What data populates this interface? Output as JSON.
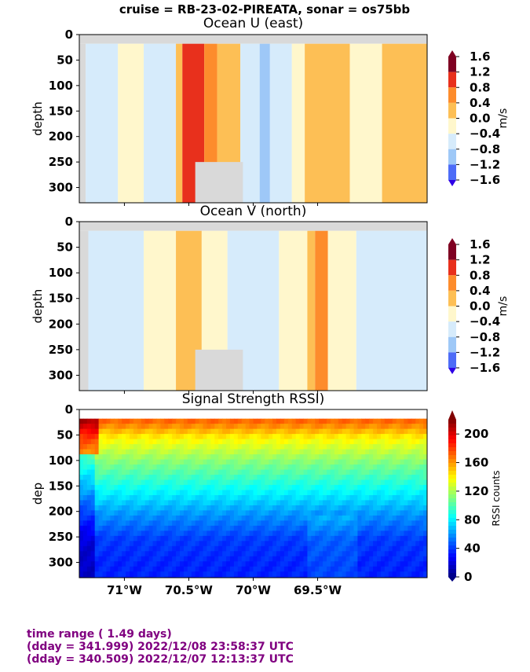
{
  "suptitle": "cruise = RB-23-02-PIREATA,  sonar = os75bb",
  "footer": {
    "line1": "time range ( 1.49 days)",
    "line2": "(dday = 341.999) 2022/12/08 23:58:37 UTC",
    "line3": "(dday = 340.509) 2022/12/07 12:13:37 UTC"
  },
  "colors": {
    "footer_text": "#800080",
    "nodata": "#d9d9d9"
  },
  "chart_data": [
    {
      "type": "heatmap",
      "title": "Ocean U (east)",
      "ylabel": "depth",
      "xlim": [
        -71.35,
        -68.65
      ],
      "ylim": [
        330,
        0
      ],
      "y_ticks": [
        0,
        50,
        100,
        150,
        200,
        250,
        300
      ],
      "x_ticks": [
        -71.0,
        -70.5,
        -70.0,
        -69.5
      ],
      "colorbar": {
        "label": "m/s",
        "ticks": [
          "1.6",
          "1.2",
          "0.8",
          "0.4",
          "0.0",
          "−0.4",
          "−0.8",
          "−1.2",
          "−1.6"
        ],
        "levels": [
          -1.6,
          -1.2,
          -0.8,
          -0.4,
          0.0,
          0.4,
          0.8,
          1.2,
          1.6
        ],
        "colors": [
          "#2e00e6",
          "#4d6cf7",
          "#9ec8f7",
          "#d6ebfb",
          "#fff7cc",
          "#fdbf55",
          "#fd8c2c",
          "#e8301c",
          "#7f0022"
        ]
      },
      "description_bands": [
        {
          "x": [
            -71.35,
            -71.3
          ],
          "value": "nodata"
        },
        {
          "x": [
            -71.3,
            -71.05
          ],
          "value": -0.2
        },
        {
          "x": [
            -71.05,
            -70.85
          ],
          "value": 0.2
        },
        {
          "x": [
            -70.85,
            -70.6
          ],
          "value": -0.2
        },
        {
          "x": [
            -70.6,
            -70.55
          ],
          "value": 0.5
        },
        {
          "x": [
            -70.55,
            -70.38
          ],
          "value": 1.4
        },
        {
          "x": [
            -70.38,
            -70.28
          ],
          "value": 0.9
        },
        {
          "x": [
            -70.28,
            -70.1
          ],
          "value": 0.5
        },
        {
          "x": [
            -70.1,
            -69.95
          ],
          "value": -0.2
        },
        {
          "x": [
            -69.95,
            -69.87
          ],
          "value": -0.6
        },
        {
          "x": [
            -69.87,
            -69.7
          ],
          "value": -0.2
        },
        {
          "x": [
            -69.7,
            -69.6
          ],
          "value": 0.2
        },
        {
          "x": [
            -69.6,
            -69.25
          ],
          "value": 0.5
        },
        {
          "x": [
            -69.25,
            -69.0
          ],
          "value": 0.2
        },
        {
          "x": [
            -69.0,
            -68.65
          ],
          "value": 0.5
        }
      ]
    },
    {
      "type": "heatmap",
      "title": "Ocean V (north)",
      "ylabel": "depth",
      "xlim": [
        -71.35,
        -68.65
      ],
      "ylim": [
        330,
        0
      ],
      "y_ticks": [
        0,
        50,
        100,
        150,
        200,
        250,
        300
      ],
      "x_ticks": [
        -71.0,
        -70.5,
        -70.0,
        -69.5
      ],
      "colorbar": {
        "label": "m/s",
        "ticks": [
          "1.6",
          "1.2",
          "0.8",
          "0.4",
          "0.0",
          "−0.4",
          "−0.8",
          "−1.2",
          "−1.6"
        ],
        "levels": [
          -1.6,
          -1.2,
          -0.8,
          -0.4,
          0.0,
          0.4,
          0.8,
          1.2,
          1.6
        ],
        "colors": [
          "#2e00e6",
          "#4d6cf7",
          "#9ec8f7",
          "#d6ebfb",
          "#fff7cc",
          "#fdbf55",
          "#fd8c2c",
          "#e8301c",
          "#7f0022"
        ]
      },
      "description_bands": [
        {
          "x": [
            -71.35,
            -71.28
          ],
          "value": "nodata"
        },
        {
          "x": [
            -71.28,
            -70.85
          ],
          "value": -0.2
        },
        {
          "x": [
            -70.85,
            -70.6
          ],
          "value": 0.2
        },
        {
          "x": [
            -70.6,
            -70.4
          ],
          "value": 0.5
        },
        {
          "x": [
            -70.4,
            -70.2
          ],
          "value": 0.2
        },
        {
          "x": [
            -70.2,
            -69.8
          ],
          "value": -0.2
        },
        {
          "x": [
            -69.8,
            -69.58
          ],
          "value": 0.2
        },
        {
          "x": [
            -69.58,
            -69.52
          ],
          "value": 0.5
        },
        {
          "x": [
            -69.52,
            -69.42
          ],
          "value": 0.9
        },
        {
          "x": [
            -69.42,
            -69.2
          ],
          "value": 0.2
        },
        {
          "x": [
            -69.2,
            -68.65
          ],
          "value": -0.2
        }
      ]
    },
    {
      "type": "heatmap",
      "title": "Signal Strength RSSI)",
      "ylabel": "dep",
      "xlim": [
        -71.35,
        -68.65
      ],
      "ylim": [
        330,
        0
      ],
      "y_ticks": [
        0,
        50,
        100,
        150,
        200,
        250,
        300
      ],
      "x_ticks": [
        -71.0,
        -70.5,
        -70.0,
        -69.5
      ],
      "x_tick_labels": [
        "71°W",
        "70.5°W",
        "70°W",
        "69.5°W"
      ],
      "colorbar": {
        "label": "RSSI counts",
        "ticks": [
          "200",
          "160",
          "120",
          "80",
          "40",
          "0"
        ],
        "range": [
          0,
          220
        ]
      },
      "profile_vs_depth": {
        "depth": [
          20,
          50,
          100,
          150,
          200,
          250,
          300,
          330
        ],
        "rssi": [
          170,
          140,
          110,
          85,
          60,
          40,
          35,
          35
        ]
      }
    }
  ]
}
